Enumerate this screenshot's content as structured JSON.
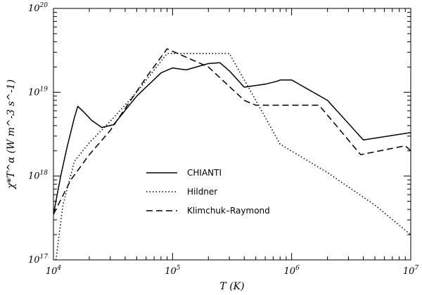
{
  "chart_data": {
    "type": "line",
    "x_scale": "log",
    "y_scale": "log",
    "xlim": [
      10000,
      10000000
    ],
    "ylim": [
      1e+17,
      1e+20
    ],
    "xlabel": "T (K)",
    "ylabel": "χ*T^α (W m^-3 s^-1)",
    "x_ticks": [
      {
        "value": 10000,
        "base": "10",
        "exp": "4"
      },
      {
        "value": 100000,
        "base": "10",
        "exp": "5"
      },
      {
        "value": 1000000,
        "base": "10",
        "exp": "6"
      },
      {
        "value": 10000000,
        "base": "10",
        "exp": "7"
      }
    ],
    "y_ticks": [
      {
        "value": 1e+17,
        "base": "10",
        "exp": "17"
      },
      {
        "value": 1e+18,
        "base": "10",
        "exp": "18"
      },
      {
        "value": 1e+19,
        "base": "10",
        "exp": "19"
      },
      {
        "value": 1e+20,
        "base": "10",
        "exp": "20"
      }
    ],
    "legend_position": "center-left",
    "series": [
      {
        "name": "CHIANTI",
        "style": "solid",
        "points": [
          [
            10000,
            3.5e+17
          ],
          [
            11500,
            1e+18
          ],
          [
            13000,
            2.2e+18
          ],
          [
            15000,
            5e+18
          ],
          [
            16000,
            6.8e+18
          ],
          [
            18000,
            5.8e+18
          ],
          [
            21000,
            4.6e+18
          ],
          [
            25500,
            3.8e+18
          ],
          [
            32000,
            4.1e+18
          ],
          [
            50000,
            9e+18
          ],
          [
            80000,
            1.7e+19
          ],
          [
            100000,
            1.95e+19
          ],
          [
            130000,
            1.85e+19
          ],
          [
            200000,
            2.2e+19
          ],
          [
            250000,
            2.25e+19
          ],
          [
            300000,
            1.8e+19
          ],
          [
            400000,
            1.15e+19
          ],
          [
            600000,
            1.25e+19
          ],
          [
            750000,
            1.35e+19
          ],
          [
            800000,
            1.4e+19
          ],
          [
            1000000,
            1.4e+19
          ],
          [
            2000000,
            8e+18
          ],
          [
            4000000,
            2.7e+18
          ],
          [
            10000000,
            3.3e+18
          ],
          [
            10500000,
            3e+18
          ]
        ]
      },
      {
        "name": "Hildner",
        "style": "dotted",
        "points": [
          [
            10500,
            1e+17
          ],
          [
            12000,
            4.5e+17
          ],
          [
            15000,
            1.5e+18
          ],
          [
            20000,
            2.5e+18
          ],
          [
            30000,
            4.5e+18
          ],
          [
            50000,
            1e+19
          ],
          [
            90000,
            2.9e+19
          ],
          [
            300000,
            2.9e+19
          ],
          [
            500000,
            8e+18
          ],
          [
            800000,
            2.4e+18
          ],
          [
            2000000,
            1.1e+18
          ],
          [
            5000000,
            4.5e+17
          ],
          [
            10000000,
            2e+17
          ]
        ]
      },
      {
        "name": "Klimchuk–Raymond",
        "style": "dashed",
        "points": [
          [
            10000,
            3.5e+17
          ],
          [
            14000,
            9e+17
          ],
          [
            20000,
            1.8e+18
          ],
          [
            30000,
            3.5e+18
          ],
          [
            60000,
            1.5e+19
          ],
          [
            90000,
            3.3e+19
          ],
          [
            200000,
            2e+19
          ],
          [
            400000,
            8e+18
          ],
          [
            500000,
            7e+18
          ],
          [
            1700000,
            7e+18
          ],
          [
            3800000,
            1.8e+18
          ],
          [
            9000000,
            2.3e+18
          ],
          [
            10000000,
            2e+18
          ]
        ]
      }
    ]
  }
}
